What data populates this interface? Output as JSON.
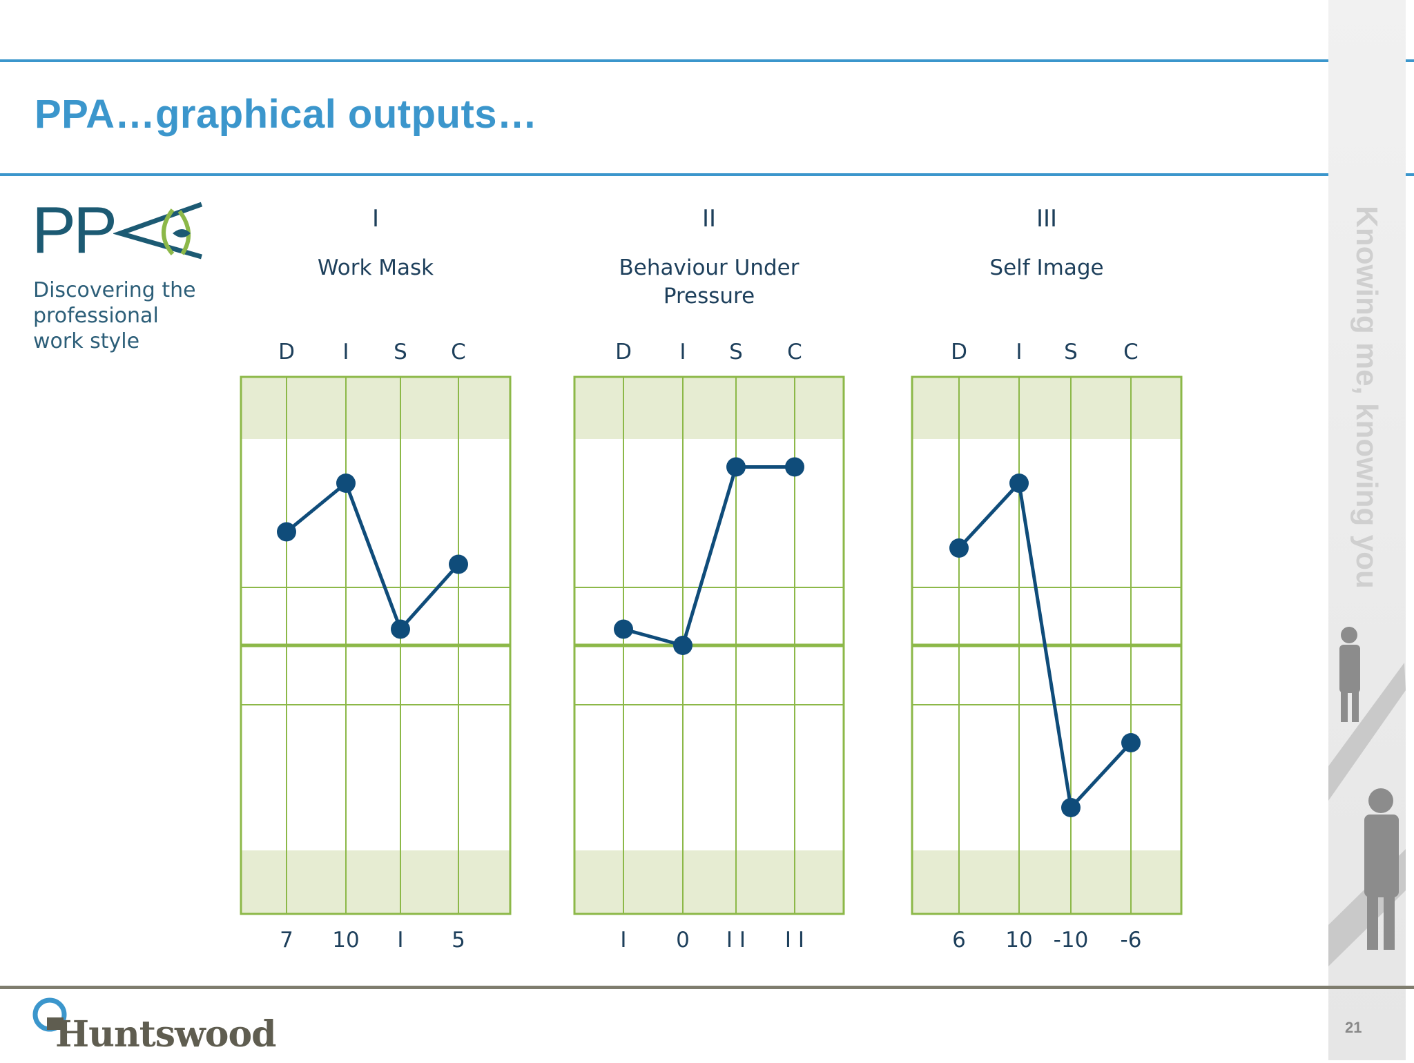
{
  "page": {
    "title": "PPA…graphical outputs…",
    "page_number": "21",
    "side_tagline": "Knowing me, knowing you",
    "brand": "Huntswood"
  },
  "logo": {
    "letters": "PP",
    "tagline_line1": "Discovering the professional",
    "tagline_line2": "work style"
  },
  "colors": {
    "accent": "#3b96cc",
    "grid_green": "#8cb848",
    "band_green": "#e6ecd2",
    "line_navy": "#0f4c7a"
  },
  "chart_data": [
    {
      "type": "line",
      "numeral": "I",
      "title": "Work Mask",
      "categories": [
        "D",
        "I",
        "S",
        "C"
      ],
      "values": [
        7,
        10,
        1,
        5
      ],
      "value_labels": [
        "7",
        "10",
        "I",
        "5"
      ]
    },
    {
      "type": "line",
      "numeral": "II",
      "title": "Behaviour Under Pressure",
      "title_lines": [
        "Behaviour Under",
        "Pressure"
      ],
      "categories": [
        "D",
        "I",
        "S",
        "C"
      ],
      "values": [
        1,
        0,
        11,
        11
      ],
      "value_labels": [
        "I",
        "0",
        "I I",
        "I I"
      ]
    },
    {
      "type": "line",
      "numeral": "III",
      "title": "Self Image",
      "categories": [
        "D",
        "I",
        "S",
        "C"
      ],
      "values": [
        6,
        10,
        -10,
        -6
      ],
      "value_labels": [
        "6",
        "10",
        "-10",
        "-6"
      ]
    }
  ]
}
